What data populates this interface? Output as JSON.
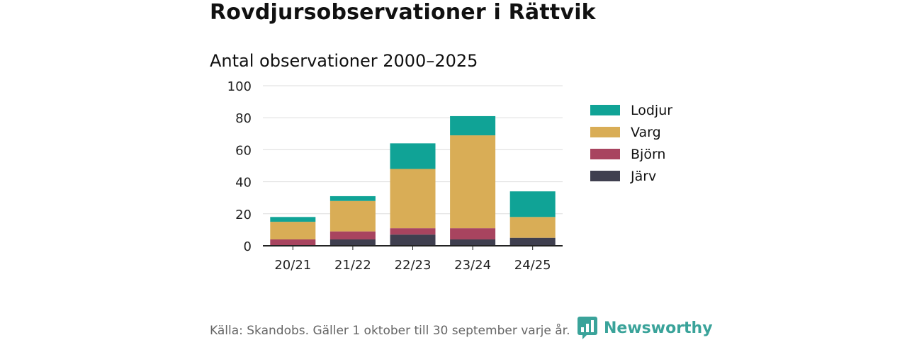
{
  "title": "Rovdjursobservationer i Rättvik",
  "subtitle": "Antal observationer 2000–2025",
  "footer": {
    "source": "Källa: Skandobs. Gäller 1 oktober till 30 september varje år.",
    "brand": "Newsworthy",
    "brand_icon": "newsworthy-logo-icon"
  },
  "colors": {
    "Lodjur": "#10a396",
    "Varg": "#d9ad56",
    "Björn": "#a8445f",
    "Järv": "#3f3f4f",
    "brand": "#3aa39a"
  },
  "chart_data": {
    "type": "bar",
    "stacked": true,
    "categories": [
      "20/21",
      "21/22",
      "22/23",
      "23/24",
      "24/25"
    ],
    "series": [
      {
        "name": "Järv",
        "values": [
          0,
          4,
          7,
          4,
          5
        ]
      },
      {
        "name": "Björn",
        "values": [
          4,
          5,
          4,
          7,
          0
        ]
      },
      {
        "name": "Varg",
        "values": [
          11,
          19,
          37,
          58,
          13
        ]
      },
      {
        "name": "Lodjur",
        "values": [
          3,
          3,
          16,
          12,
          16
        ]
      }
    ],
    "legend_order": [
      "Lodjur",
      "Varg",
      "Björn",
      "Järv"
    ],
    "ylim": [
      0,
      100
    ],
    "yticks": [
      0,
      20,
      40,
      60,
      80,
      100
    ],
    "grid": true,
    "legend_position": "right"
  }
}
